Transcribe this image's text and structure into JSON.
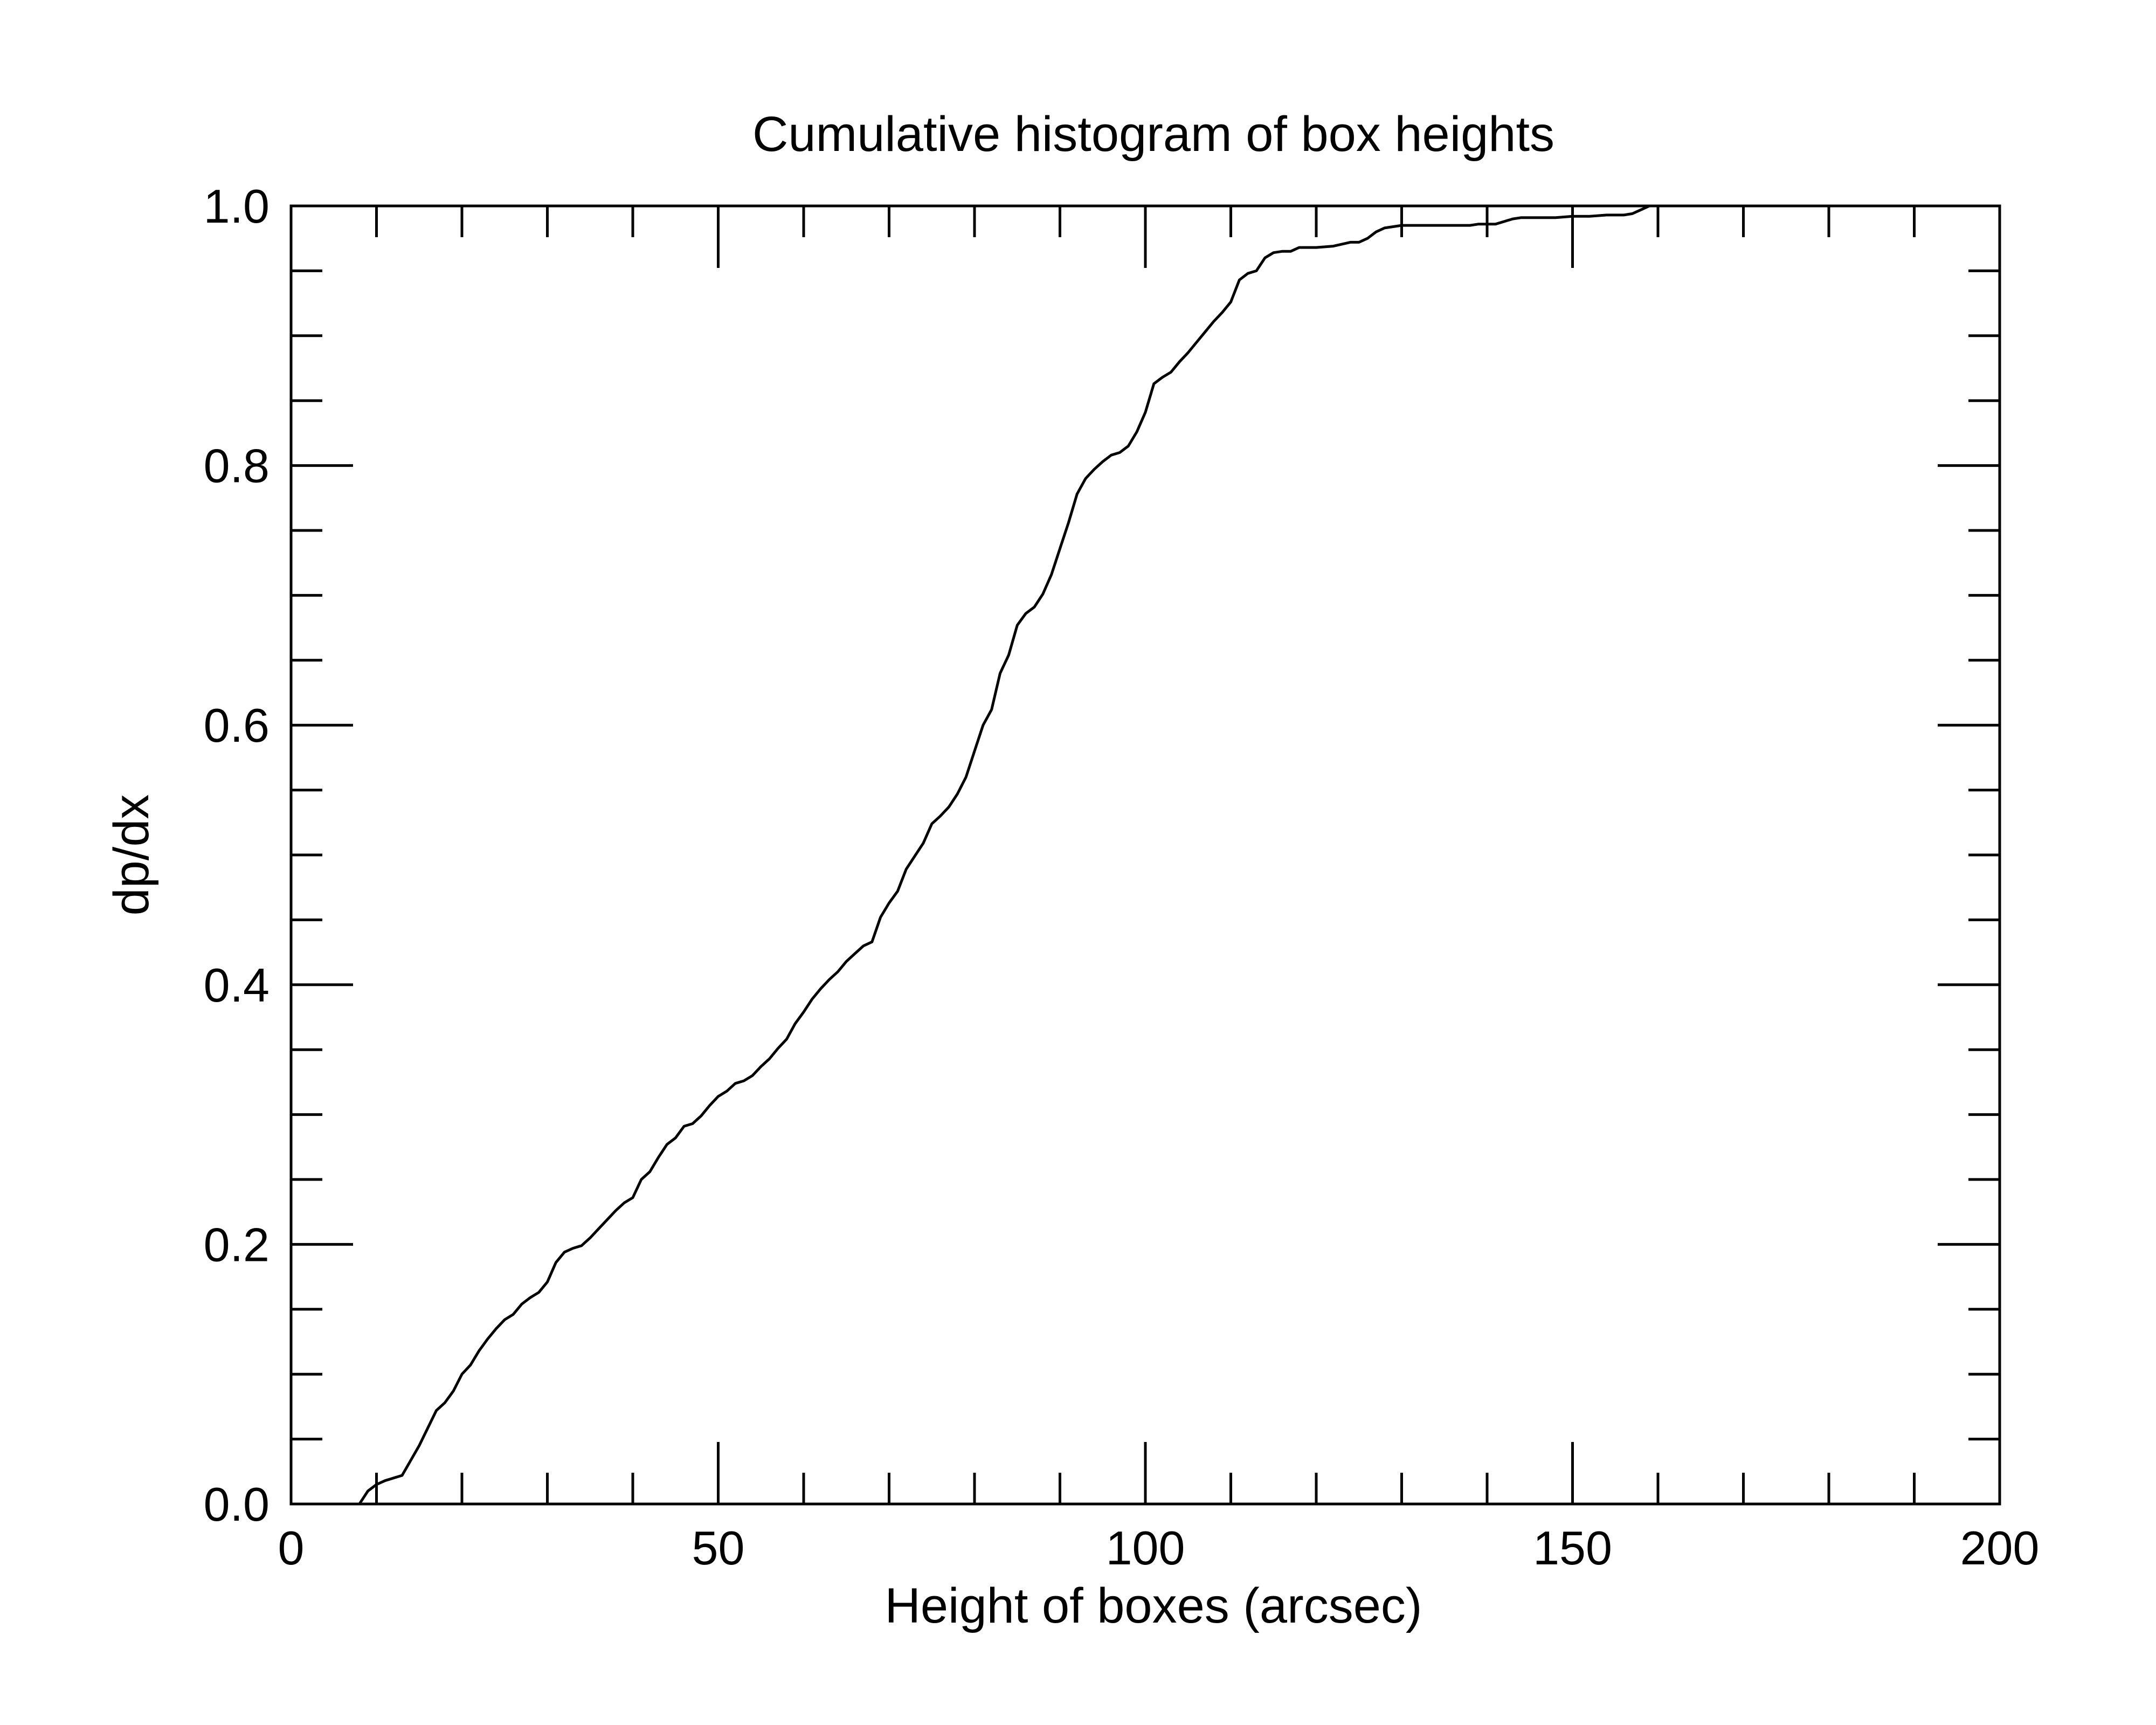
{
  "chart_data": {
    "type": "line",
    "title": "Cumulative histogram of box heights",
    "xlabel": "Height of boxes (arcsec)",
    "ylabel": "dp/dx",
    "xlim": [
      0,
      200
    ],
    "ylim": [
      0,
      1
    ],
    "x_ticks": [
      0,
      50,
      100,
      150,
      200
    ],
    "x_tick_labels": [
      "0",
      "50",
      "100",
      "150",
      "200"
    ],
    "y_ticks": [
      0,
      0.2,
      0.4,
      0.6,
      0.8,
      1.0
    ],
    "y_tick_labels": [
      "0.0",
      "0.2",
      "0.4",
      "0.6",
      "0.8",
      "1.0"
    ],
    "x_minor_step": 10,
    "y_minor_step": 0.05,
    "grid": false,
    "legend": "none",
    "line_color": "#000000",
    "series": [
      {
        "x": [
          0,
          8,
          9,
          10,
          11,
          13,
          15,
          17,
          18,
          19,
          20,
          21,
          22,
          23,
          24,
          25,
          26,
          27,
          28,
          29,
          30,
          31,
          32,
          33,
          34,
          35,
          36,
          37,
          38,
          39,
          40,
          41,
          42,
          43,
          44,
          45,
          46,
          47,
          48,
          49,
          50,
          51,
          52,
          53,
          54,
          55,
          56,
          57,
          58,
          59,
          60,
          61,
          62,
          63,
          64,
          65,
          66,
          67,
          68,
          69,
          70,
          71,
          72,
          73,
          74,
          75,
          76,
          77,
          78,
          79,
          80,
          81,
          82,
          83,
          84,
          85,
          86,
          87,
          88,
          89,
          90,
          91,
          92,
          93,
          94,
          95,
          96,
          97,
          98,
          99,
          100,
          101,
          102,
          103,
          104,
          105,
          106,
          107,
          108,
          109,
          110,
          111,
          112,
          113,
          114,
          115,
          116,
          117,
          118,
          120,
          122,
          124,
          125,
          126,
          127,
          128,
          129,
          130,
          132,
          134,
          136,
          138,
          139,
          140,
          141,
          142,
          143,
          144,
          146,
          148,
          150,
          152,
          154,
          156,
          157,
          158,
          159,
          160,
          200
        ],
        "y": [
          0,
          0,
          0.01,
          0.015,
          0.018,
          0.022,
          0.045,
          0.072,
          0.078,
          0.087,
          0.1,
          0.107,
          0.118,
          0.127,
          0.135,
          0.142,
          0.146,
          0.154,
          0.159,
          0.163,
          0.171,
          0.186,
          0.194,
          0.197,
          0.199,
          0.205,
          0.212,
          0.219,
          0.226,
          0.232,
          0.236,
          0.25,
          0.256,
          0.267,
          0.277,
          0.282,
          0.291,
          0.293,
          0.299,
          0.307,
          0.314,
          0.318,
          0.324,
          0.326,
          0.33,
          0.337,
          0.343,
          0.351,
          0.358,
          0.37,
          0.379,
          0.389,
          0.397,
          0.404,
          0.41,
          0.418,
          0.424,
          0.43,
          0.433,
          0.452,
          0.463,
          0.472,
          0.489,
          0.499,
          0.509,
          0.524,
          0.53,
          0.537,
          0.547,
          0.56,
          0.58,
          0.6,
          0.612,
          0.64,
          0.654,
          0.677,
          0.686,
          0.691,
          0.701,
          0.716,
          0.736,
          0.756,
          0.778,
          0.79,
          0.797,
          0.803,
          0.808,
          0.81,
          0.815,
          0.826,
          0.841,
          0.863,
          0.868,
          0.872,
          0.88,
          0.887,
          0.895,
          0.903,
          0.911,
          0.918,
          0.926,
          0.943,
          0.948,
          0.95,
          0.96,
          0.964,
          0.965,
          0.965,
          0.968,
          0.968,
          0.969,
          0.972,
          0.972,
          0.975,
          0.98,
          0.983,
          0.984,
          0.985,
          0.985,
          0.985,
          0.985,
          0.985,
          0.986,
          0.986,
          0.986,
          0.988,
          0.99,
          0.991,
          0.991,
          0.991,
          0.992,
          0.992,
          0.993,
          0.993,
          0.994,
          0.997,
          1.0,
          1.0,
          1.0
        ]
      }
    ]
  }
}
